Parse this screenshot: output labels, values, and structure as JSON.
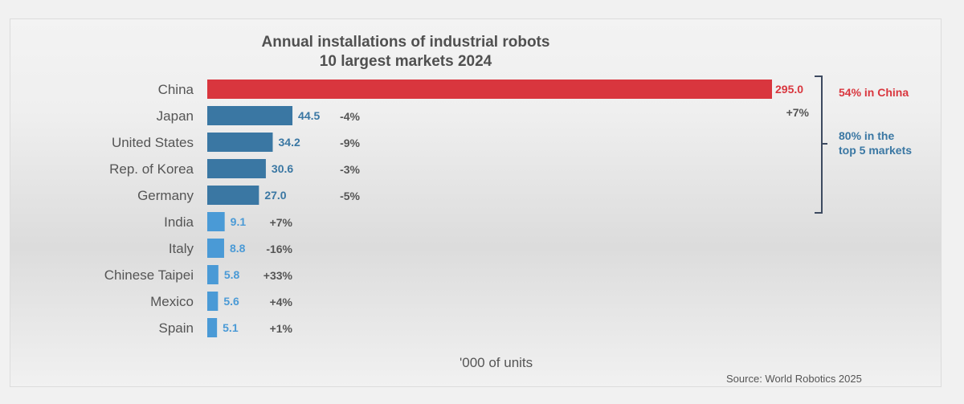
{
  "chart_data": {
    "type": "bar",
    "orientation": "horizontal",
    "title": "Annual installations of industrial robots",
    "subtitle": "10 largest markets 2024",
    "xlabel": "'000 of units",
    "source": "Source: World Robotics 2025",
    "categories": [
      "China",
      "Japan",
      "United States",
      "Rep. of Korea",
      "Germany",
      "India",
      "Italy",
      "Chinese Taipei",
      "Mexico",
      "Spain"
    ],
    "values": [
      295.0,
      44.5,
      34.2,
      30.6,
      27.0,
      9.1,
      8.8,
      5.8,
      5.6,
      5.1
    ],
    "value_labels": [
      "295.0",
      "44.5",
      "34.2",
      "30.6",
      "27.0",
      "9.1",
      "8.8",
      "5.8",
      "5.6",
      "5.1"
    ],
    "changes": [
      "+7%",
      "-4%",
      "-9%",
      "-3%",
      "-5%",
      "+7%",
      "-16%",
      "+33%",
      "+4%",
      "+1%"
    ],
    "groups": [
      "china",
      "top5",
      "top5",
      "top5",
      "top5",
      "other",
      "other",
      "other",
      "other",
      "other"
    ],
    "xlim": [
      0,
      295
    ],
    "grid": false,
    "annotations": {
      "china_share": "54% in China",
      "top5_line1": "80% in the",
      "top5_line2": "top 5 markets"
    }
  },
  "colors": {
    "china": "#d9363e",
    "top5": "#3a77a3",
    "other": "#4a9ad6",
    "china_label": "#d9363e",
    "top5_label": "#3a77a3",
    "other_label": "#4a9ad6",
    "change": "#555555",
    "category": "#555555",
    "bracket": "#3d4a60"
  }
}
